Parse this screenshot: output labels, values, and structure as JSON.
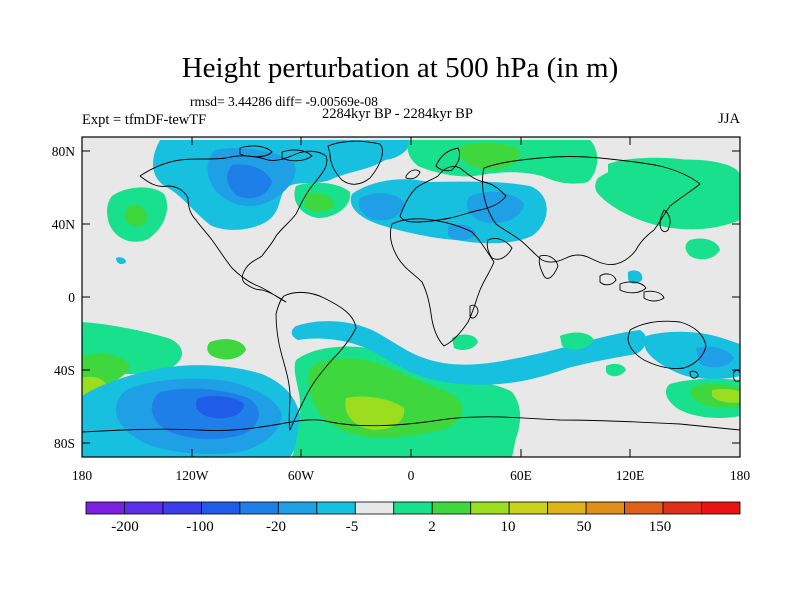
{
  "title": "Height perturbation at 500 hPa (in m)",
  "stats": "rmsd= 3.44286 diff= -9.00569e-08",
  "period": "2284kyr BP - 2284kyr BP",
  "experiment": "Expt = tfmDF-tewTF",
  "season": "JJA",
  "latitude_labels": [
    "80N",
    "40N",
    "0",
    "40S",
    "80S"
  ],
  "longitude_labels": [
    "180",
    "120W",
    "60W",
    "0",
    "60E",
    "120E",
    "180"
  ],
  "colorbar": {
    "colors": [
      "#7b1fe0",
      "#5a2fe8",
      "#3a3ee8",
      "#1f5de8",
      "#1f7fe8",
      "#1f9fe6",
      "#18c0e0",
      "#e8e8e8",
      "#18e08c",
      "#3ed83e",
      "#9ade1f",
      "#c8d21a",
      "#ddb51a",
      "#e0901a",
      "#e0601a",
      "#e0301a",
      "#e81414"
    ],
    "labels": [
      "-200",
      "-100",
      "-20",
      "-5",
      "2",
      "10",
      "50",
      "150"
    ]
  },
  "background_color": "#e8e8e8"
}
